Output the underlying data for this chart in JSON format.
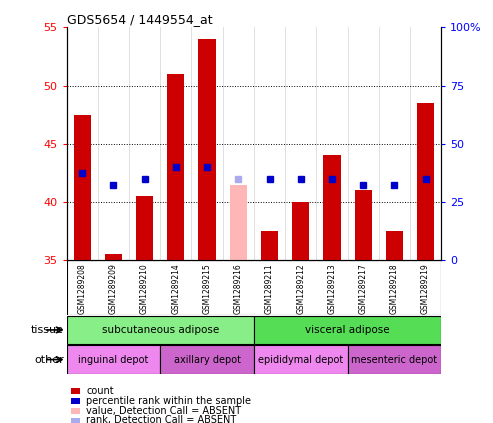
{
  "title": "GDS5654 / 1449554_at",
  "samples": [
    "GSM1289208",
    "GSM1289209",
    "GSM1289210",
    "GSM1289214",
    "GSM1289215",
    "GSM1289216",
    "GSM1289211",
    "GSM1289212",
    "GSM1289213",
    "GSM1289217",
    "GSM1289218",
    "GSM1289219"
  ],
  "count_values": [
    47.5,
    35.5,
    40.5,
    51.0,
    54.0,
    null,
    37.5,
    40.0,
    44.0,
    41.0,
    37.5,
    48.5
  ],
  "count_absent": [
    null,
    null,
    null,
    null,
    null,
    41.5,
    null,
    null,
    null,
    null,
    null,
    null
  ],
  "rank_values": [
    42.5,
    41.5,
    42.0,
    43.0,
    43.0,
    null,
    42.0,
    42.0,
    42.0,
    41.5,
    41.5,
    42.0
  ],
  "rank_absent": [
    null,
    null,
    null,
    null,
    null,
    42.0,
    null,
    null,
    null,
    null,
    null,
    null
  ],
  "ylim_left": [
    35,
    55
  ],
  "ylim_right": [
    0,
    100
  ],
  "yticks_left": [
    35,
    40,
    45,
    50,
    55
  ],
  "yticks_right": [
    0,
    25,
    50,
    75,
    100
  ],
  "ytick_labels_left": [
    "35",
    "40",
    "45",
    "50",
    "55"
  ],
  "ytick_labels_right": [
    "0",
    "25",
    "50",
    "75",
    "100%"
  ],
  "bar_color": "#cc0000",
  "bar_absent_color": "#ffb6b6",
  "rank_color": "#0000cc",
  "rank_absent_color": "#aaaaee",
  "bar_bottom": 35,
  "tissue_groups": [
    {
      "label": "subcutaneous adipose",
      "start": 0,
      "end": 6,
      "color": "#88ee88"
    },
    {
      "label": "visceral adipose",
      "start": 6,
      "end": 12,
      "color": "#55dd55"
    }
  ],
  "other_groups": [
    {
      "label": "inguinal depot",
      "start": 0,
      "end": 3,
      "color": "#ee88ee"
    },
    {
      "label": "axillary depot",
      "start": 3,
      "end": 6,
      "color": "#cc66cc"
    },
    {
      "label": "epididymal depot",
      "start": 6,
      "end": 9,
      "color": "#ee88ee"
    },
    {
      "label": "mesenteric depot",
      "start": 9,
      "end": 12,
      "color": "#cc66cc"
    }
  ],
  "legend_items": [
    {
      "label": "count",
      "color": "#cc0000"
    },
    {
      "label": "percentile rank within the sample",
      "color": "#0000cc"
    },
    {
      "label": "value, Detection Call = ABSENT",
      "color": "#ffb6b6"
    },
    {
      "label": "rank, Detection Call = ABSENT",
      "color": "#aaaaee"
    }
  ],
  "grid_yticks": [
    40,
    45,
    50
  ],
  "axis_bg": "#d8d8d8",
  "bar_width": 0.55,
  "rank_marker_size": 5
}
